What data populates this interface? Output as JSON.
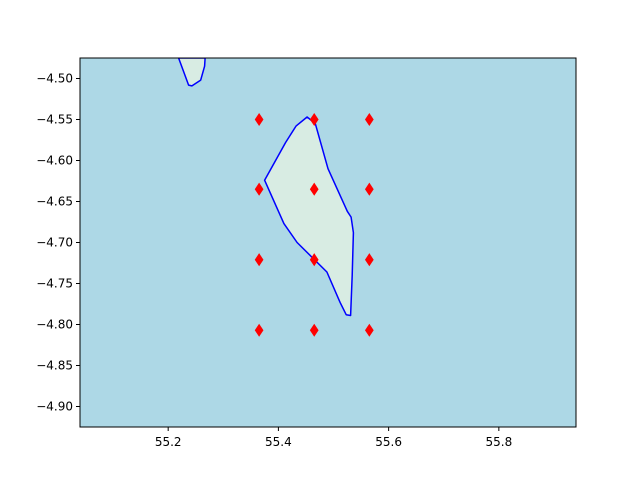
{
  "chart_data": {
    "type": "map",
    "title": "",
    "xlabel": "",
    "ylabel": "",
    "xlim": [
      55.04,
      55.94
    ],
    "ylim": [
      -4.925,
      -4.475
    ],
    "x_ticks": [
      55.2,
      55.4,
      55.6,
      55.8
    ],
    "x_tick_labels": [
      "55.2",
      "55.4",
      "55.6",
      "55.8"
    ],
    "y_ticks": [
      -4.5,
      -4.55,
      -4.6,
      -4.65,
      -4.7,
      -4.75,
      -4.8,
      -4.85,
      -4.9
    ],
    "y_tick_labels": [
      "−4.50",
      "−4.55",
      "−4.60",
      "−4.65",
      "−4.70",
      "−4.75",
      "−4.80",
      "−4.85",
      "−4.90"
    ],
    "grid": false,
    "ocean_color": "#add8e6",
    "land_color": "#d8ece3",
    "coastline_color": "#0000ff",
    "marker_color": "#ff0000",
    "marker_shape": "thin_diamond",
    "islands": [
      {
        "coast": [
          [
            55.219,
            -4.475
          ],
          [
            55.237,
            -4.508
          ],
          [
            55.243,
            -4.509
          ],
          [
            55.259,
            -4.502
          ],
          [
            55.266,
            -4.485
          ],
          [
            55.267,
            -4.475
          ]
        ]
      },
      {
        "coast": [
          [
            55.375,
            -4.624
          ],
          [
            55.413,
            -4.578
          ],
          [
            55.432,
            -4.558
          ],
          [
            55.452,
            -4.547
          ],
          [
            55.467,
            -4.555
          ],
          [
            55.49,
            -4.61
          ],
          [
            55.525,
            -4.662
          ],
          [
            55.532,
            -4.669
          ],
          [
            55.536,
            -4.688
          ],
          [
            55.534,
            -4.74
          ],
          [
            55.531,
            -4.789
          ],
          [
            55.523,
            -4.788
          ],
          [
            55.512,
            -4.773
          ],
          [
            55.488,
            -4.736
          ],
          [
            55.434,
            -4.7
          ],
          [
            55.41,
            -4.677
          ]
        ]
      }
    ],
    "points": [
      [
        55.365,
        -4.55
      ],
      [
        55.465,
        -4.55
      ],
      [
        55.565,
        -4.55
      ],
      [
        55.365,
        -4.635
      ],
      [
        55.465,
        -4.635
      ],
      [
        55.565,
        -4.635
      ],
      [
        55.365,
        -4.721
      ],
      [
        55.465,
        -4.721
      ],
      [
        55.565,
        -4.721
      ],
      [
        55.365,
        -4.807
      ],
      [
        55.465,
        -4.807
      ],
      [
        55.565,
        -4.807
      ]
    ]
  }
}
